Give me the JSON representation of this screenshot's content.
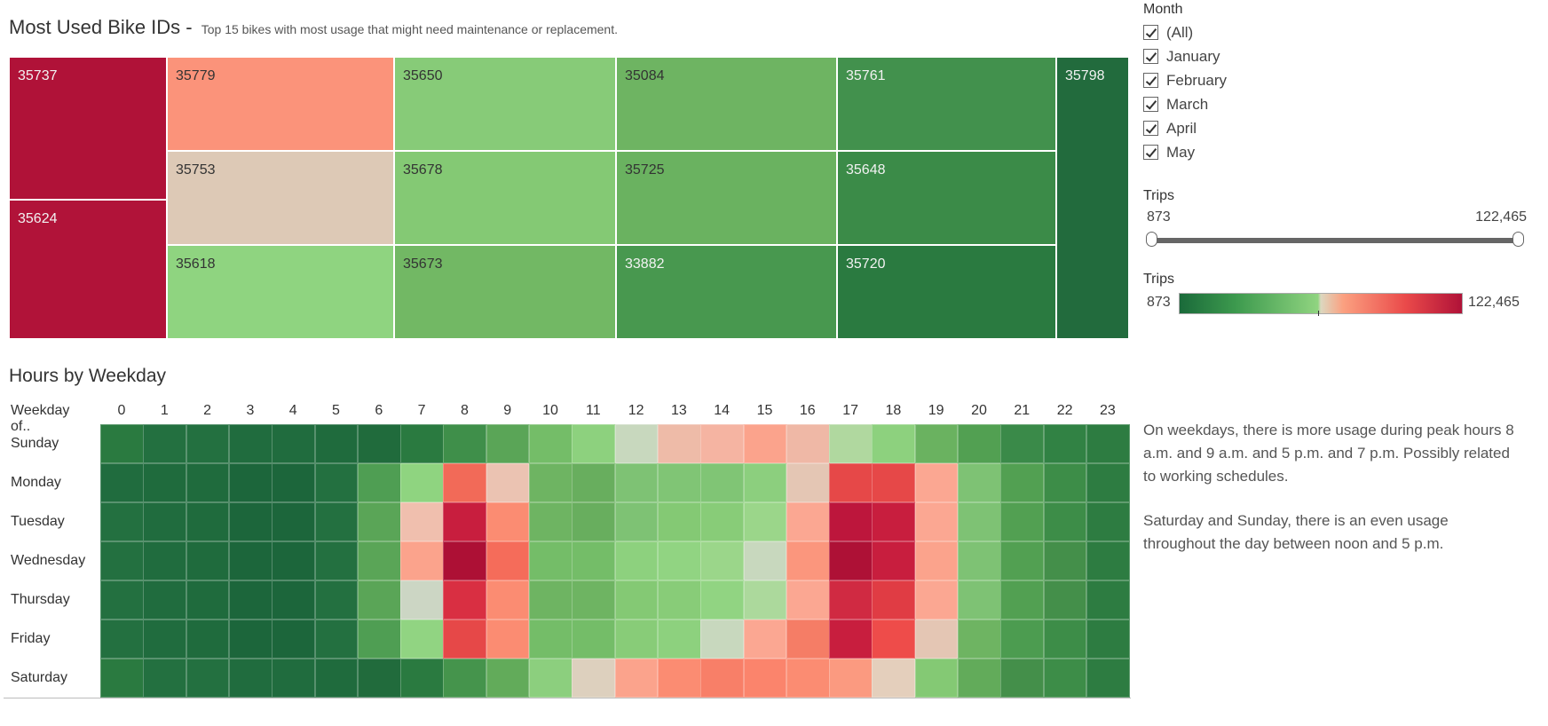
{
  "chart_data": [
    {
      "type": "treemap",
      "title": "Most Used Bike IDs -",
      "subtitle": "Top 15 bikes with most usage that might need maintenance or replacement.",
      "tiles": [
        {
          "label": "35737",
          "color": "#b01238"
        },
        {
          "label": "35624",
          "color": "#b11339"
        },
        {
          "label": "35779",
          "color": "#fb937a"
        },
        {
          "label": "35753",
          "color": "#ddc9b6"
        },
        {
          "label": "35618",
          "color": "#8fd480"
        },
        {
          "label": "35650",
          "color": "#87cb78"
        },
        {
          "label": "35678",
          "color": "#84c974"
        },
        {
          "label": "35673",
          "color": "#72b864"
        },
        {
          "label": "35084",
          "color": "#6eb462"
        },
        {
          "label": "35725",
          "color": "#6ab260"
        },
        {
          "label": "33882",
          "color": "#48984f"
        },
        {
          "label": "35761",
          "color": "#42914d"
        },
        {
          "label": "35648",
          "color": "#3b8b48"
        },
        {
          "label": "35720",
          "color": "#2a7a40"
        },
        {
          "label": "35798",
          "color": "#226b3d"
        }
      ]
    },
    {
      "type": "heatmap",
      "title": "Hours by Weekday",
      "row_header": "Weekday of..",
      "x": [
        "0",
        "1",
        "2",
        "3",
        "4",
        "5",
        "6",
        "7",
        "8",
        "9",
        "10",
        "11",
        "12",
        "13",
        "14",
        "15",
        "16",
        "17",
        "18",
        "19",
        "20",
        "21",
        "22",
        "23"
      ],
      "y": [
        "Sunday",
        "Monday",
        "Tuesday",
        "Wednesday",
        "Thursday",
        "Friday",
        "Saturday"
      ],
      "colors": [
        [
          "#2a7a40",
          "#237040",
          "#237040",
          "#206c3e",
          "#206c3e",
          "#1f6b3d",
          "#206b3c",
          "#2a7a40",
          "#3f8f4a",
          "#5aa557",
          "#74bd68",
          "#8dd17e",
          "#c8d8be",
          "#eebba8",
          "#f5b4a2",
          "#fba38c",
          "#efb8a6",
          "#b0d89f",
          "#8dd17e",
          "#6ab260",
          "#52a052",
          "#3a8a49",
          "#318244",
          "#2d7c41"
        ],
        [
          "#206c3e",
          "#1f6b3d",
          "#1f6b3d",
          "#1c663b",
          "#1c663b",
          "#237040",
          "#4f9e53",
          "#8fd480",
          "#f26a58",
          "#ebc3b2",
          "#6eb462",
          "#68ae5e",
          "#7ec274",
          "#80c575",
          "#80c575",
          "#8ccf7e",
          "#e4c6b4",
          "#e64848",
          "#e64848",
          "#fba792",
          "#7ec274",
          "#52a052",
          "#3d8d48",
          "#2d7c41"
        ],
        [
          "#237040",
          "#206c3e",
          "#1f6b3d",
          "#1c663b",
          "#1c663b",
          "#237040",
          "#5aa557",
          "#f0bfae",
          "#c81e3e",
          "#fb8c72",
          "#6eb462",
          "#68ae5e",
          "#7ec274",
          "#84c974",
          "#88cc78",
          "#9bd68a",
          "#fba792",
          "#bd163c",
          "#c81e3e",
          "#fba792",
          "#7ec274",
          "#52a052",
          "#3d8d48",
          "#2d7c41"
        ],
        [
          "#237040",
          "#206c3e",
          "#1f6b3d",
          "#1c663b",
          "#1c663b",
          "#237040",
          "#5aa557",
          "#fba38c",
          "#ad1035",
          "#f56c5a",
          "#74bd68",
          "#74bd68",
          "#8dd17e",
          "#91d482",
          "#9bd68a",
          "#c8d8be",
          "#fb967d",
          "#ae1136",
          "#c81e3e",
          "#fba38c",
          "#7ec274",
          "#52a052",
          "#448f4a",
          "#2d7c41"
        ],
        [
          "#237040",
          "#206c3e",
          "#1f6b3d",
          "#1c663b",
          "#1c663b",
          "#237040",
          "#5aa557",
          "#ccd6c4",
          "#d92f42",
          "#fb8c72",
          "#6eb462",
          "#6eb462",
          "#84c974",
          "#88cc78",
          "#91d482",
          "#acd99c",
          "#fba792",
          "#d02a42",
          "#e03c44",
          "#fba792",
          "#7ec274",
          "#52a052",
          "#448f4a",
          "#2d7c41"
        ],
        [
          "#237040",
          "#206c3e",
          "#1f6b3d",
          "#1c663b",
          "#1c663b",
          "#237040",
          "#4f9e53",
          "#91d482",
          "#e64848",
          "#fb8c72",
          "#74bd68",
          "#74bd68",
          "#88cc78",
          "#8dd17e",
          "#c8d8be",
          "#fba792",
          "#f57d66",
          "#c81e3e",
          "#ee4c4a",
          "#e4c6b4",
          "#6eb462",
          "#4c9c50",
          "#3d8d48",
          "#2d7c41"
        ],
        [
          "#2a7a40",
          "#237040",
          "#237040",
          "#206c3e",
          "#206c3e",
          "#1f6b3d",
          "#216b3c",
          "#2a7a40",
          "#45944c",
          "#62ab5a",
          "#8ccf7e",
          "#ddd0be",
          "#fba38c",
          "#fb8c72",
          "#f87f68",
          "#fb846c",
          "#fb8c72",
          "#fb9a80",
          "#e4cfbc",
          "#84c974",
          "#62ab5a",
          "#448f4a",
          "#3d8d48",
          "#2d7c41"
        ]
      ]
    }
  ],
  "filters": {
    "month_title": "Month",
    "months": [
      "(All)",
      "January",
      "February",
      "March",
      "April",
      "May"
    ],
    "trips_title": "Trips",
    "trips_min": "873",
    "trips_max": "122,465",
    "legend_title": "Trips",
    "legend_min": "873",
    "legend_max": "122,465"
  },
  "notes": {
    "p1": "On weekdays, there is more usage during peak hours 8 a.m. and 9 a.m. and 5 p.m. and 7 p.m. Possibly related to working schedules.",
    "p2": "Saturday and Sunday, there is an even usage throughout the day between noon and 5 p.m."
  }
}
